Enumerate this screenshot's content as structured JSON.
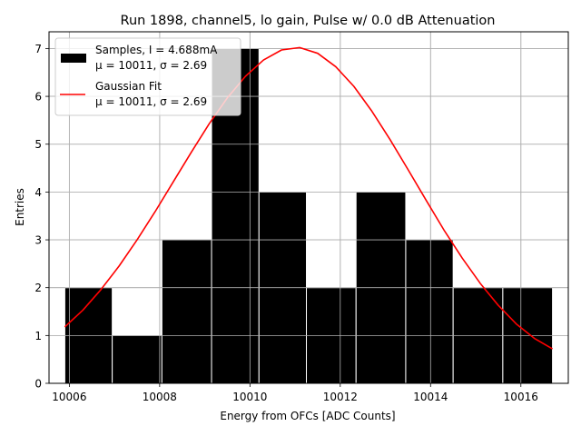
{
  "chart_data": {
    "type": "bar",
    "title": "Run 1898, channel5, lo gain, Pulse w/ 0.0 dB Attenuation",
    "xlabel": "Energy from OFCs [ADC Counts]",
    "ylabel": "Entries",
    "xlim": [
      10005.55,
      10017.05
    ],
    "ylim": [
      0,
      7.35
    ],
    "grid": true,
    "legend_position": "top-left",
    "x_ticks": [
      10006,
      10008,
      10010,
      10012,
      10014,
      10016
    ],
    "y_ticks": [
      0,
      1,
      2,
      3,
      4,
      5,
      6,
      7
    ],
    "histogram": {
      "name": "Samples",
      "legend_line1": "Samples, I = 4.688mA",
      "legend_line2": "μ = 10011, σ = 2.69",
      "bin_edges": [
        10005.9,
        10006.95,
        10008.05,
        10009.15,
        10010.2,
        10011.25,
        10012.35,
        10013.45,
        10014.5,
        10015.6,
        10016.7
      ],
      "counts": [
        2,
        1,
        3,
        7,
        4,
        2,
        4,
        3,
        2,
        2
      ],
      "color": "#000000",
      "edge_color": "#ffffff"
    },
    "fit": {
      "name": "Gaussian Fit",
      "legend_line1": "Gaussian Fit",
      "legend_line2": "μ = 10011, σ = 2.69",
      "x": [
        10005.9,
        10006.3,
        10006.7,
        10007.1,
        10007.5,
        10007.9,
        10008.3,
        10008.7,
        10009.1,
        10009.5,
        10009.9,
        10010.3,
        10010.7,
        10011.1,
        10011.5,
        10011.9,
        10012.3,
        10012.7,
        10013.1,
        10013.5,
        10013.9,
        10014.3,
        10014.7,
        10015.1,
        10015.5,
        10015.9,
        10016.3,
        10016.7
      ],
      "y": [
        1.18,
        1.53,
        1.96,
        2.45,
        3.0,
        3.59,
        4.21,
        4.83,
        5.43,
        5.97,
        6.42,
        6.76,
        6.97,
        7.02,
        6.9,
        6.62,
        6.21,
        5.69,
        5.1,
        4.47,
        3.83,
        3.2,
        2.62,
        2.09,
        1.63,
        1.24,
        0.94,
        0.72
      ],
      "color": "#ff0000"
    }
  }
}
